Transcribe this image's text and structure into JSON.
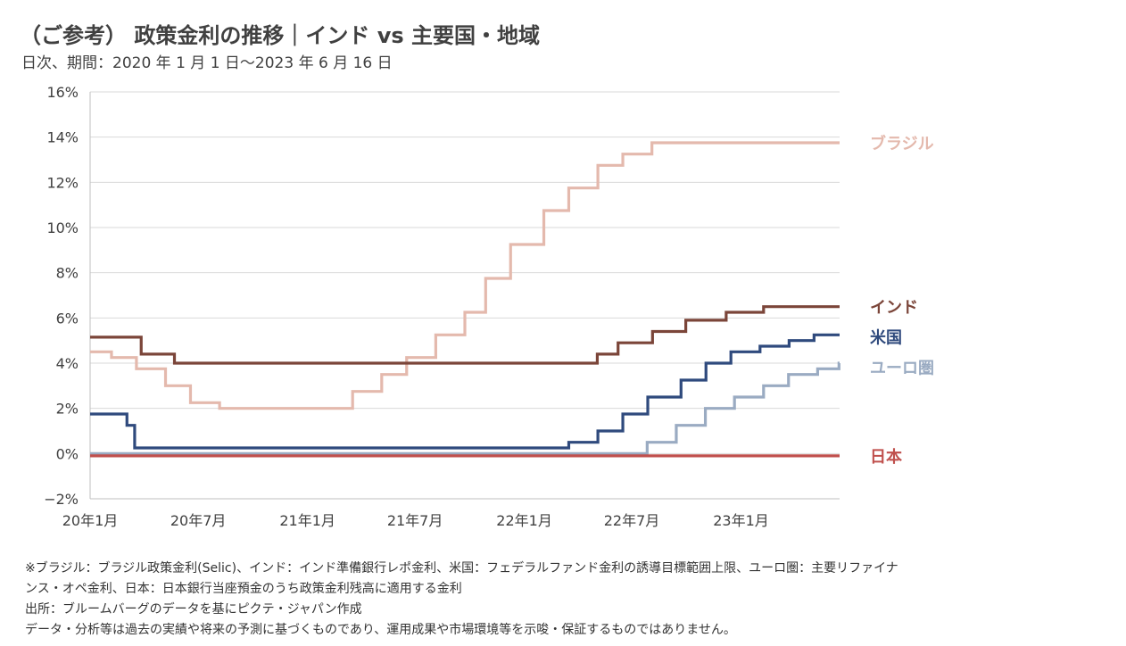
{
  "chart_data": {
    "type": "line",
    "title": "（ご参考） 政策金利の推移｜インド vs 主要国・地域",
    "subtitle": "日次、期間：2020 年 1 月 1 日～2023 年 6 月 16 日",
    "xlabel": "",
    "ylabel": "",
    "xlim": [
      "2020-01-01",
      "2023-06-16"
    ],
    "ylim": [
      -2,
      16
    ],
    "grid": true,
    "x_ticks": [
      {
        "date": "2020-01-01",
        "label": "20年1月"
      },
      {
        "date": "2020-07-01",
        "label": "20年7月"
      },
      {
        "date": "2021-01-01",
        "label": "21年1月"
      },
      {
        "date": "2021-07-01",
        "label": "21年7月"
      },
      {
        "date": "2022-01-01",
        "label": "22年1月"
      },
      {
        "date": "2022-07-01",
        "label": "22年7月"
      },
      {
        "date": "2023-01-01",
        "label": "23年1月"
      }
    ],
    "y_ticks": [
      {
        "value": 16,
        "label": "16%"
      },
      {
        "value": 14,
        "label": "14%"
      },
      {
        "value": 12,
        "label": "12%"
      },
      {
        "value": 10,
        "label": "10%"
      },
      {
        "value": 8,
        "label": "8%"
      },
      {
        "value": 6,
        "label": "6%"
      },
      {
        "value": 4,
        "label": "4%"
      },
      {
        "value": 2,
        "label": "2%"
      },
      {
        "value": 0,
        "label": "0%"
      },
      {
        "value": -2,
        "label": "−2%"
      }
    ],
    "series": [
      {
        "name": "ブラジル",
        "color": "#e4b9ad",
        "step_points": [
          [
            "2020-01-01",
            4.5
          ],
          [
            "2020-02-06",
            4.25
          ],
          [
            "2020-03-19",
            3.75
          ],
          [
            "2020-05-07",
            3.0
          ],
          [
            "2020-06-18",
            2.25
          ],
          [
            "2020-08-06",
            2.0
          ],
          [
            "2021-03-18",
            2.75
          ],
          [
            "2021-05-06",
            3.5
          ],
          [
            "2021-06-17",
            4.25
          ],
          [
            "2021-08-05",
            5.25
          ],
          [
            "2021-09-23",
            6.25
          ],
          [
            "2021-10-28",
            7.75
          ],
          [
            "2021-12-09",
            9.25
          ],
          [
            "2022-02-03",
            10.75
          ],
          [
            "2022-03-17",
            11.75
          ],
          [
            "2022-05-05",
            12.75
          ],
          [
            "2022-06-16",
            13.25
          ],
          [
            "2022-08-04",
            13.75
          ],
          [
            "2023-06-16",
            13.75
          ]
        ]
      },
      {
        "name": "インド",
        "color": "#7b4539",
        "step_points": [
          [
            "2020-01-01",
            5.15
          ],
          [
            "2020-03-27",
            4.4
          ],
          [
            "2020-05-22",
            4.0
          ],
          [
            "2022-05-04",
            4.4
          ],
          [
            "2022-06-08",
            4.9
          ],
          [
            "2022-08-05",
            5.4
          ],
          [
            "2022-09-30",
            5.9
          ],
          [
            "2022-12-07",
            6.25
          ],
          [
            "2023-02-08",
            6.5
          ],
          [
            "2023-06-16",
            6.5
          ]
        ]
      },
      {
        "name": "米国",
        "color": "#2f4a7d",
        "step_points": [
          [
            "2020-01-01",
            1.75
          ],
          [
            "2020-03-03",
            1.25
          ],
          [
            "2020-03-16",
            0.25
          ],
          [
            "2022-03-17",
            0.5
          ],
          [
            "2022-05-05",
            1.0
          ],
          [
            "2022-06-16",
            1.75
          ],
          [
            "2022-07-28",
            2.5
          ],
          [
            "2022-09-22",
            3.25
          ],
          [
            "2022-11-03",
            4.0
          ],
          [
            "2022-12-15",
            4.5
          ],
          [
            "2023-02-02",
            4.75
          ],
          [
            "2023-03-23",
            5.0
          ],
          [
            "2023-05-04",
            5.25
          ],
          [
            "2023-06-16",
            5.25
          ]
        ]
      },
      {
        "name": "ユーロ圏",
        "color": "#9aabc2",
        "step_points": [
          [
            "2020-01-01",
            0.0
          ],
          [
            "2022-07-27",
            0.5
          ],
          [
            "2022-09-14",
            1.25
          ],
          [
            "2022-11-02",
            2.0
          ],
          [
            "2022-12-21",
            2.5
          ],
          [
            "2023-02-08",
            3.0
          ],
          [
            "2023-03-22",
            3.5
          ],
          [
            "2023-05-10",
            3.75
          ],
          [
            "2023-06-15",
            4.0
          ],
          [
            "2023-06-16",
            4.0
          ]
        ]
      },
      {
        "name": "日本",
        "color": "#c0504d",
        "step_points": [
          [
            "2020-01-01",
            -0.1
          ],
          [
            "2023-06-16",
            -0.1
          ]
        ]
      }
    ]
  },
  "notes": [
    "※ブラジル：ブラジル政策金利(Selic)、インド：インド準備銀行レポ金利、米国：フェデラルファンド金利の誘導目標範囲上限、ユーロ圏：主要リファイナ",
    "ンス・オペ金利、日本：日本銀行当座預金のうち政策金利残高に適用する金利",
    "出所：ブルームバーグのデータを基にピクテ・ジャパン作成",
    "データ・分析等は過去の実績や将来の予測に基づくものであり、運用成果や市場環境等を示唆・保証するものではありません。"
  ]
}
